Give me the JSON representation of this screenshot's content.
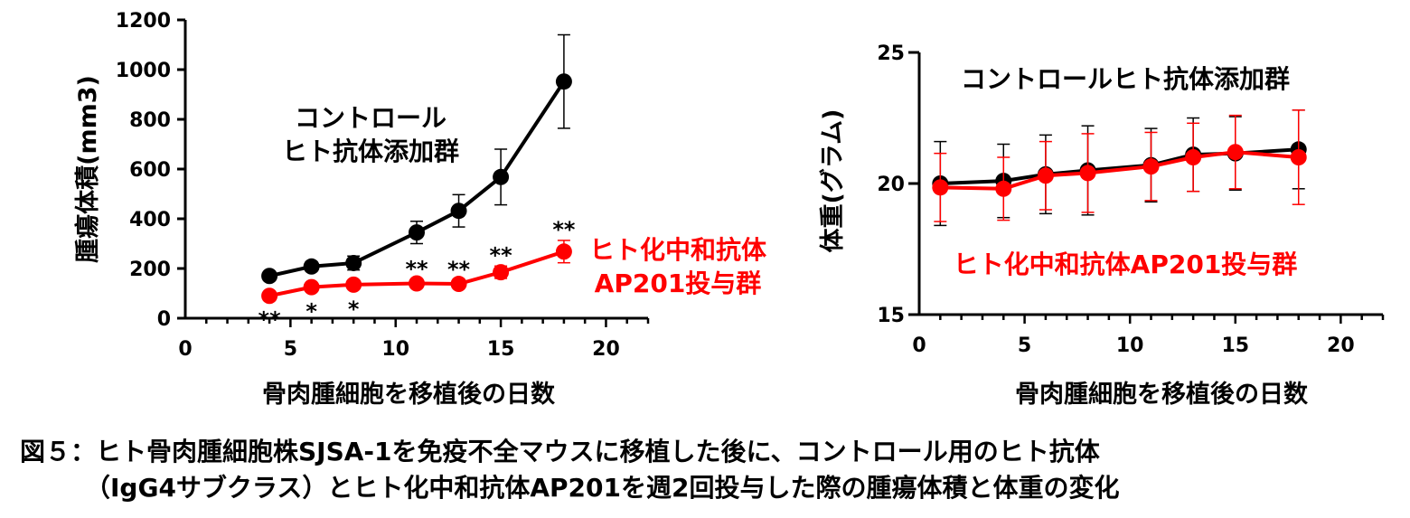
{
  "chart_data": [
    {
      "type": "line",
      "ylabel": "腫瘍体積(mm3)",
      "xlabel": "骨肉腫細胞を移植後の日数",
      "xlim": [
        0,
        22
      ],
      "ylim": [
        0,
        1200
      ],
      "xticks": [
        0,
        5,
        10,
        15,
        20
      ],
      "yticks": [
        0,
        200,
        400,
        600,
        800,
        1000,
        1200
      ],
      "series": [
        {
          "name": "コントロール ヒト抗体添加群",
          "label_lines": [
            "コントロール",
            "ヒト抗体添加群"
          ],
          "color": "#000000",
          "x": [
            4,
            6,
            8,
            11,
            13,
            15,
            18
          ],
          "y": [
            170,
            208,
            222,
            345,
            432,
            568,
            952
          ],
          "err": [
            12,
            18,
            28,
            45,
            65,
            112,
            188
          ]
        },
        {
          "name": "ヒト化中和抗体 AP201投与群",
          "label_lines": [
            "ヒト化中和抗体",
            "AP201投与群"
          ],
          "color": "#ff0000",
          "x": [
            4,
            6,
            8,
            11,
            13,
            15,
            18
          ],
          "y": [
            90,
            125,
            135,
            140,
            138,
            185,
            268
          ],
          "err": [
            8,
            10,
            12,
            15,
            15,
            25,
            45
          ],
          "significance": [
            "**",
            "*",
            "*",
            "**",
            "**",
            "**",
            "**"
          ]
        }
      ]
    },
    {
      "type": "line",
      "ylabel": "体重(グラム)",
      "xlabel": "骨肉腫細胞を移植後の日数",
      "xlim": [
        0,
        22
      ],
      "ylim": [
        15,
        25
      ],
      "xticks": [
        0,
        5,
        10,
        15,
        20
      ],
      "yticks": [
        15,
        20,
        25
      ],
      "series": [
        {
          "name": "コントロールヒト抗体添加群",
          "color": "#000000",
          "x": [
            1,
            4,
            6,
            8,
            11,
            13,
            15,
            18
          ],
          "y": [
            20.0,
            20.1,
            20.35,
            20.5,
            20.7,
            21.1,
            21.15,
            21.3
          ],
          "err": [
            1.6,
            1.4,
            1.5,
            1.7,
            1.4,
            1.4,
            1.4,
            1.5
          ]
        },
        {
          "name": "ヒト化中和抗体AP201投与群",
          "color": "#ff0000",
          "x": [
            1,
            4,
            6,
            8,
            11,
            13,
            15,
            18
          ],
          "y": [
            19.85,
            19.8,
            20.3,
            20.4,
            20.65,
            21.0,
            21.2,
            21.0
          ],
          "err": [
            1.3,
            1.2,
            1.3,
            1.5,
            1.3,
            1.3,
            1.4,
            1.8
          ]
        }
      ]
    }
  ],
  "caption": {
    "line1": "図５：ヒト骨肉腫細胞株SJSA-1を免疫不全マウスに移植した後に、コントロール用のヒト抗体",
    "line2": "（IgG4サブクラス）とヒト化中和抗体AP201を週2回投与した際の腫瘍体積と体重の変化"
  }
}
